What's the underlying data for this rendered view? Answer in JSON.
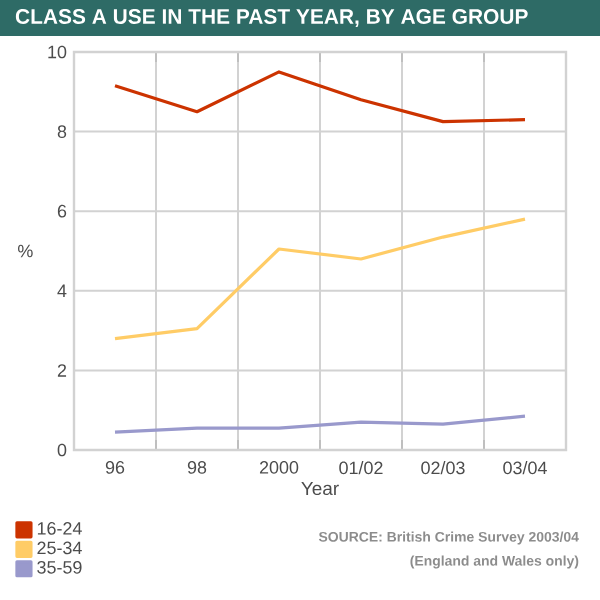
{
  "chart_data": {
    "type": "line",
    "title": "CLASS A USE IN THE PAST YEAR, BY AGE GROUP",
    "xlabel": "Year",
    "ylabel": "%",
    "categories": [
      "96",
      "98",
      "2000",
      "01/02",
      "02/03",
      "03/04"
    ],
    "series": [
      {
        "name": "16-24",
        "color": "#cc3300",
        "values": [
          9.15,
          8.5,
          9.5,
          8.8,
          8.25,
          8.3
        ]
      },
      {
        "name": "25-34",
        "color": "#ffcc66",
        "values": [
          2.8,
          3.05,
          5.05,
          4.8,
          5.35,
          5.8
        ]
      },
      {
        "name": "35-59",
        "color": "#9999cc",
        "values": [
          0.45,
          0.55,
          0.55,
          0.7,
          0.65,
          0.85
        ]
      }
    ],
    "ylim": [
      0,
      10
    ],
    "yticks": [
      0,
      2,
      4,
      6,
      8,
      10
    ],
    "grid": true,
    "legend": "bottom left",
    "marker": "none",
    "line_style": "solid",
    "annotations": [
      "SOURCE: British Crime Survey 2003/04",
      "(England and Wales only)"
    ]
  }
}
